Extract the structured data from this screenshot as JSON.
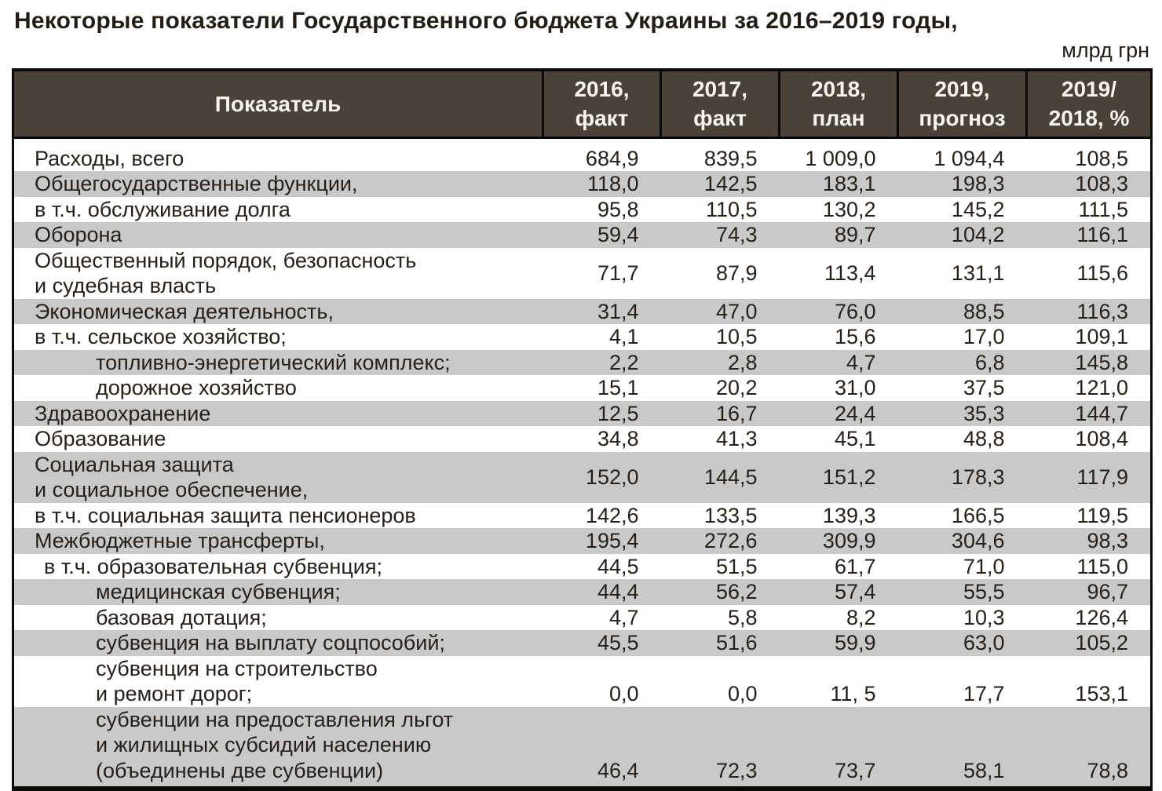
{
  "title": "Некоторые показатели Государственного бюджета Украины за 2016–2019 годы,",
  "units": "млрд грн",
  "colors": {
    "header_bg": "#4a4238",
    "header_text": "#f7f4ef",
    "stripe": "#c9c9c9",
    "text": "#262019",
    "border": "#0b0906"
  },
  "table": {
    "columns": [
      {
        "lines": [
          "Показатель"
        ]
      },
      {
        "lines": [
          "2016,",
          "факт"
        ]
      },
      {
        "lines": [
          "2017,",
          "факт"
        ]
      },
      {
        "lines": [
          "2018,",
          "план"
        ]
      },
      {
        "lines": [
          "2019,",
          "прогноз"
        ]
      },
      {
        "lines": [
          "2019/",
          "2018, %"
        ]
      }
    ],
    "rows": [
      {
        "label_lines": [
          "Расходы, всего"
        ],
        "indent": "none",
        "values": [
          "684,9",
          "839,5",
          "1 009,0",
          "1 094,4",
          "108,5"
        ],
        "shaded": false,
        "values_valign": "middle"
      },
      {
        "label_lines": [
          "Общегосударственные функции,"
        ],
        "indent": "none",
        "values": [
          "118,0",
          "142,5",
          "183,1",
          "198,3",
          "108,3"
        ],
        "shaded": true,
        "values_valign": "middle"
      },
      {
        "label_lines": [
          "в т.ч. обслуживание долга"
        ],
        "indent": "none",
        "values": [
          "95,8",
          "110,5",
          "130,2",
          "145,2",
          "111,5"
        ],
        "shaded": false,
        "values_valign": "middle"
      },
      {
        "label_lines": [
          "Оборона"
        ],
        "indent": "none",
        "values": [
          "59,4",
          "74,3",
          "89,7",
          "104,2",
          "116,1"
        ],
        "shaded": true,
        "values_valign": "middle"
      },
      {
        "label_lines": [
          "Общественный порядок, безопасность",
          "и судебная власть"
        ],
        "indent": "none",
        "values": [
          "71,7",
          "87,9",
          "113,4",
          "131,1",
          "115,6"
        ],
        "shaded": false,
        "values_valign": "middle"
      },
      {
        "label_lines": [
          "Экономическая деятельность,"
        ],
        "indent": "none",
        "values": [
          "31,4",
          "47,0",
          "76,0",
          "88,5",
          "116,3"
        ],
        "shaded": true,
        "values_valign": "middle"
      },
      {
        "label_lines": [
          "в т.ч. сельское хозяйство;"
        ],
        "indent": "none",
        "values": [
          "4,1",
          "10,5",
          "15,6",
          "17,0",
          "109,1"
        ],
        "shaded": false,
        "values_valign": "middle"
      },
      {
        "label_lines": [
          "топливно-энергетический комплекс;"
        ],
        "indent": "deep",
        "values": [
          "2,2",
          "2,8",
          "4,7",
          "6,8",
          "145,8"
        ],
        "shaded": true,
        "values_valign": "middle"
      },
      {
        "label_lines": [
          "дорожное хозяйство"
        ],
        "indent": "deep",
        "values": [
          "15,1",
          "20,2",
          "31,0",
          "37,5",
          "121,0"
        ],
        "shaded": false,
        "values_valign": "middle"
      },
      {
        "label_lines": [
          "Здравоохранение"
        ],
        "indent": "none",
        "values": [
          "12,5",
          "16,7",
          "24,4",
          "35,3",
          "144,7"
        ],
        "shaded": true,
        "values_valign": "middle"
      },
      {
        "label_lines": [
          "Образование"
        ],
        "indent": "none",
        "values": [
          "34,8",
          "41,3",
          "45,1",
          "48,8",
          "108,4"
        ],
        "shaded": false,
        "values_valign": "middle"
      },
      {
        "label_lines": [
          "Социальная защита",
          "и социальное обеспечение,"
        ],
        "indent": "none",
        "values": [
          "152,0",
          "144,5",
          "151,2",
          "178,3",
          "117,9"
        ],
        "shaded": true,
        "values_valign": "middle"
      },
      {
        "label_lines": [
          "в т.ч. социальная защита пенсионеров"
        ],
        "indent": "none",
        "values": [
          "142,6",
          "133,5",
          "139,3",
          "166,5",
          "119,5"
        ],
        "shaded": false,
        "values_valign": "middle"
      },
      {
        "label_lines": [
          "Межбюджетные трансферты,"
        ],
        "indent": "none",
        "values": [
          "195,4",
          "272,6",
          "309,9",
          "304,6",
          "98,3"
        ],
        "shaded": true,
        "values_valign": "middle"
      },
      {
        "label_lines": [
          "в т.ч. образовательная субвенция;"
        ],
        "indent": "sub",
        "values": [
          "44,5",
          "51,5",
          "61,7",
          "71,0",
          "115,0"
        ],
        "shaded": false,
        "values_valign": "middle"
      },
      {
        "label_lines": [
          "медицинская субвенция;"
        ],
        "indent": "deep",
        "values": [
          "44,4",
          "56,2",
          "57,4",
          "55,5",
          "96,7"
        ],
        "shaded": true,
        "values_valign": "middle"
      },
      {
        "label_lines": [
          "базовая дотация;"
        ],
        "indent": "deep",
        "values": [
          "4,7",
          "5,8",
          "8,2",
          "10,3",
          "126,4"
        ],
        "shaded": false,
        "values_valign": "middle"
      },
      {
        "label_lines": [
          "субвенция на выплату соцпособий;"
        ],
        "indent": "deep",
        "values": [
          "45,5",
          "51,6",
          "59,9",
          "63,0",
          "105,2"
        ],
        "shaded": true,
        "values_valign": "middle"
      },
      {
        "label_lines": [
          "субвенция на строительство",
          "и ремонт дорог;"
        ],
        "indent": "deep",
        "values": [
          "0,0",
          "0,0",
          "11, 5",
          "17,7",
          "153,1"
        ],
        "shaded": false,
        "values_valign": "bottom"
      },
      {
        "label_lines": [
          "субвенции на предоставления льгот",
          "и жилищных субсидий населению",
          "(объединены две субвенции)"
        ],
        "indent": "deep",
        "values": [
          "46,4",
          "72,3",
          "73,7",
          "58,1",
          "78,8"
        ],
        "shaded": true,
        "values_valign": "bottom"
      }
    ]
  }
}
